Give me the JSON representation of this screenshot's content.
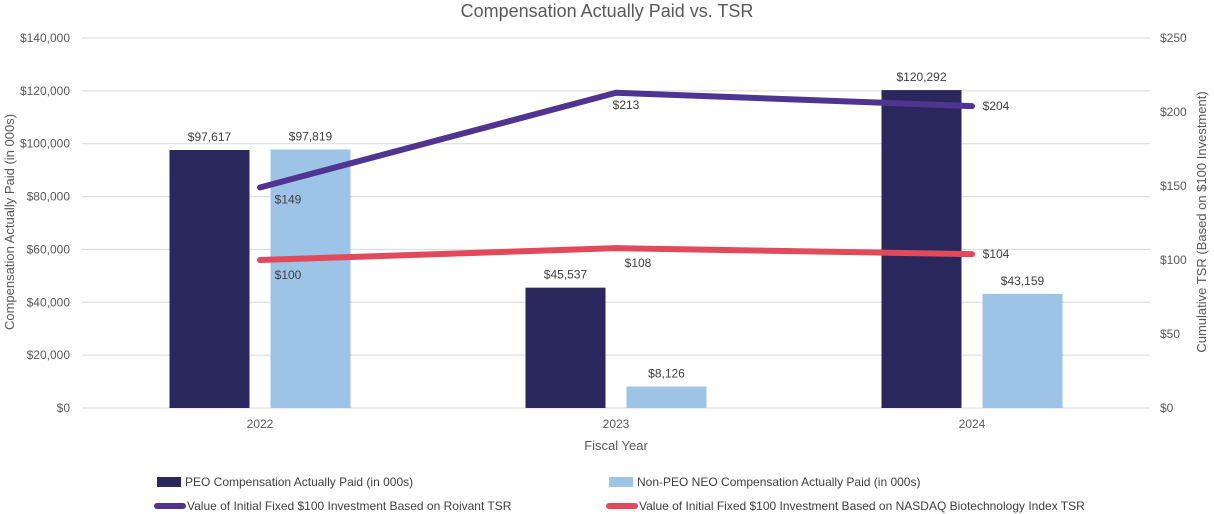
{
  "chart_data": {
    "type": "bar+line",
    "title": "Compensation Actually Paid vs. TSR",
    "xlabel": "Fiscal Year",
    "ylabel": "Compensation Actually Paid (in 000s)",
    "y2label": "Cumulative TSR (Based on $100 Investment)",
    "categories": [
      "2022",
      "2023",
      "2024"
    ],
    "ylim": [
      0,
      140000
    ],
    "yticks": [
      0,
      20000,
      40000,
      60000,
      80000,
      100000,
      120000,
      140000
    ],
    "ytick_labels": [
      "$0",
      "$20,000",
      "$40,000",
      "$60,000",
      "$80,000",
      "$100,000",
      "$120,000",
      "$140,000"
    ],
    "y2lim": [
      0,
      250
    ],
    "y2ticks": [
      0,
      50,
      100,
      150,
      200,
      250
    ],
    "y2tick_labels": [
      "$0",
      "$50",
      "$100",
      "$150",
      "$200",
      "$250"
    ],
    "bar_series": [
      {
        "name": "PEO Compensation Actually Paid (in 000s)",
        "color": "#2a275c",
        "values": [
          97617,
          45537,
          120292
        ],
        "labels": [
          "$97,617",
          "$45,537",
          "$120,292"
        ]
      },
      {
        "name": "Non-PEO NEO Compensation Actually Paid (in 000s)",
        "color": "#9dc3e6",
        "values": [
          97819,
          8126,
          43159
        ],
        "labels": [
          "$97,819",
          "$8,126",
          "$43,159"
        ]
      }
    ],
    "line_series": [
      {
        "name": "Value of Initial Fixed $100 Investment Based on Roivant TSR",
        "color": "#4f3591",
        "axis": "right",
        "values": [
          149,
          213,
          204
        ],
        "labels": [
          "$149",
          "$213",
          "$204"
        ]
      },
      {
        "name": "Value of Initial Fixed $100 Investment Based on NASDAQ Biotechnology Index TSR",
        "color": "#e04a5a",
        "axis": "right",
        "values": [
          100,
          108,
          104
        ],
        "labels": [
          "$100",
          "$108",
          "$104"
        ]
      }
    ],
    "grid": true,
    "legend_position": "bottom"
  }
}
